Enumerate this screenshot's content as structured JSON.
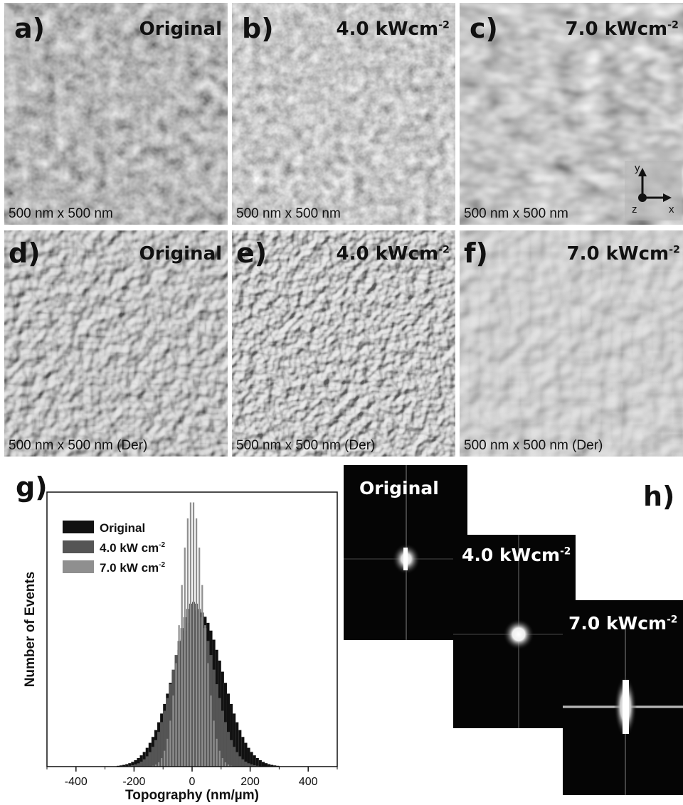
{
  "panels": [
    {
      "label": "a)",
      "title": "Original",
      "title_sup": "",
      "scale": "500 nm x 500 nm"
    },
    {
      "label": "b)",
      "title": "4.0 kWcm",
      "title_sup": "-2",
      "scale": "500 nm x 500 nm"
    },
    {
      "label": "c)",
      "title": "7.0 kWcm",
      "title_sup": "-2",
      "scale": "500 nm x 500 nm"
    },
    {
      "label": "d)",
      "title": "Original",
      "title_sup": "",
      "scale": "500 nm x 500 nm (Der)"
    },
    {
      "label": "e)",
      "title": "4.0 kWcm",
      "title_sup": "-2",
      "scale": "500 nm x 500 nm (Der)"
    },
    {
      "label": "f)",
      "title": "7.0 kWcm",
      "title_sup": "-2",
      "scale": "500 nm x 500 nm (Der)"
    }
  ],
  "axes_indicator": {
    "y": "y",
    "x": "x",
    "z": "z"
  },
  "fft": {
    "panel_label": "h)",
    "items": [
      {
        "title": "Original",
        "title_sup": ""
      },
      {
        "title": "4.0 kWcm",
        "title_sup": "-2"
      },
      {
        "title": "7.0 kWcm",
        "title_sup": "-2"
      }
    ]
  },
  "chart_data": {
    "panel_label": "g)",
    "type": "bar",
    "xlabel": "Topography (nm/µm)",
    "ylabel": "Number of Events",
    "xlim": [
      -500,
      500
    ],
    "ylim": [
      0,
      1.0
    ],
    "xticks": [
      -400,
      -200,
      0,
      200,
      400
    ],
    "legend_position": "top-left",
    "series": [
      {
        "name": "Original",
        "legend_sup": "",
        "color": "#111111",
        "center": 20,
        "sigma": 85,
        "peak": 0.57
      },
      {
        "name": "4.0 kW cm",
        "legend_sup": "-2",
        "color": "#555555",
        "center": 5,
        "sigma": 68,
        "peak": 0.6
      },
      {
        "name": "7.0 kW cm",
        "legend_sup": "-2",
        "color": "#8f8f8f",
        "center": 0,
        "sigma": 40,
        "peak": 0.97
      }
    ]
  }
}
